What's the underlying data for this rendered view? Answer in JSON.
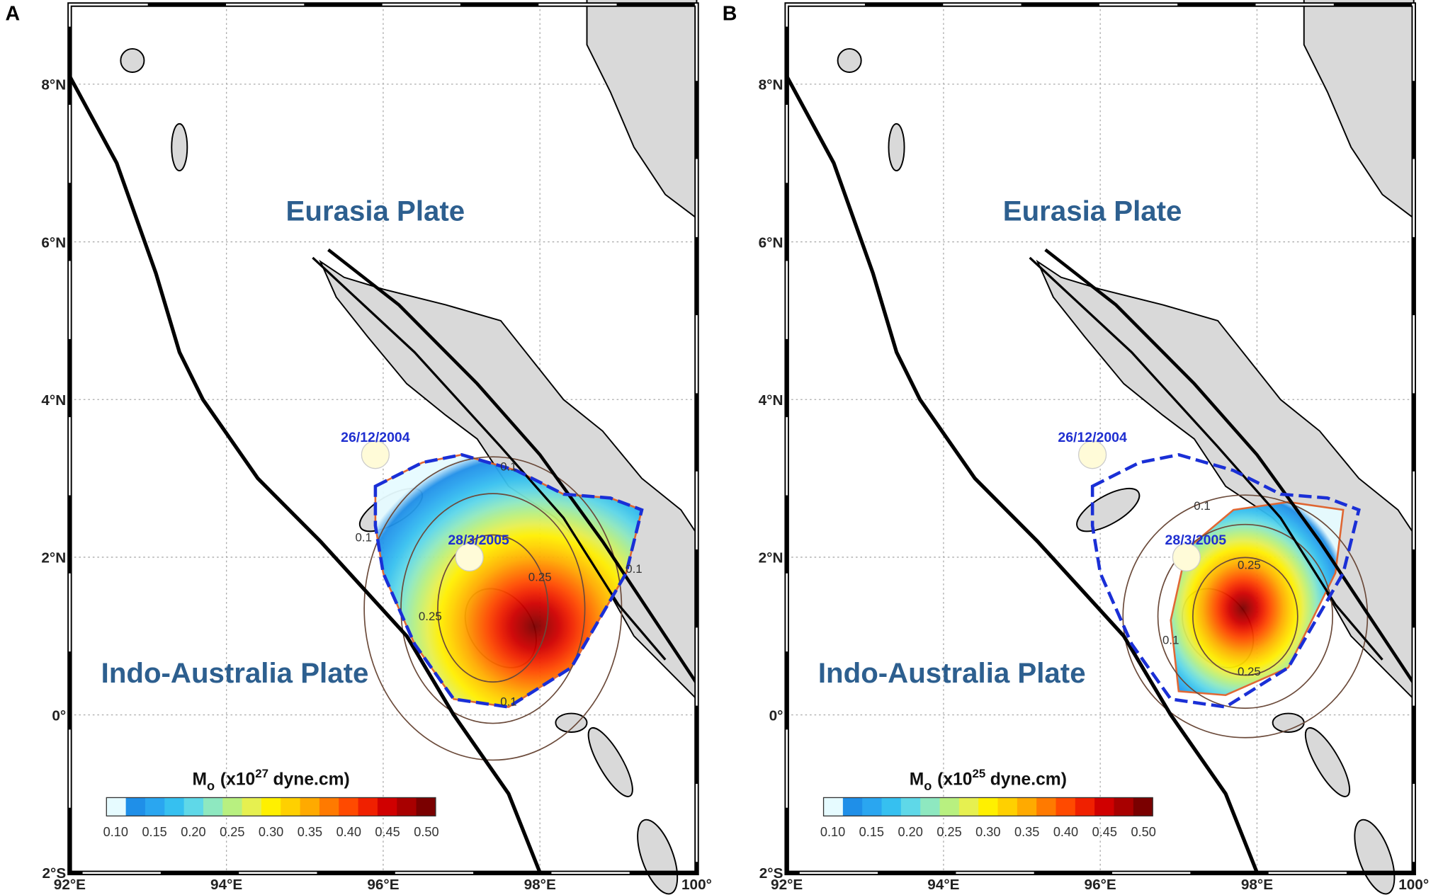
{
  "panels": [
    {
      "label": "A",
      "plates": [
        "Eurasia Plate",
        "Indo-Australia Plate"
      ],
      "dates": [
        "26/12/2004",
        "28/3/2005"
      ],
      "contour_labels": [
        "0.1",
        "0.25",
        "0.25",
        "0.1",
        "0.1",
        "0.1"
      ],
      "colorbar_title": {
        "symbol": "M",
        "subscript": "o",
        "prefix": "(x10",
        "exponent": "27",
        "suffix": "dyne.cm)"
      },
      "colorbar_ticks": [
        "0.10",
        "0.15",
        "0.20",
        "0.25",
        "0.30",
        "0.35",
        "0.40",
        "0.45",
        "0.50"
      ],
      "lat_labels": [
        "8°N",
        "6°N",
        "4°N",
        "2°N",
        "0°",
        "2°S"
      ],
      "lon_labels": [
        "92°E",
        "94°E",
        "96°E",
        "98°E",
        "100°"
      ]
    },
    {
      "label": "B",
      "plates": [
        "Eurasia Plate",
        "Indo-Australia Plate"
      ],
      "dates": [
        "26/12/2004",
        "28/3/2005"
      ],
      "contour_labels": [
        "0.1",
        "0.25",
        "0.25",
        "0.1"
      ],
      "colorbar_title": {
        "symbol": "M",
        "subscript": "o",
        "prefix": "(x10",
        "exponent": "25",
        "suffix": "dyne.cm)"
      },
      "colorbar_ticks": [
        "0.10",
        "0.15",
        "0.20",
        "0.25",
        "0.30",
        "0.35",
        "0.40",
        "0.45",
        "0.50"
      ],
      "lat_labels": [
        "8°N",
        "6°N",
        "4°N",
        "2°N",
        "0°",
        "2°S"
      ],
      "lon_labels": [
        "92°E",
        "94°E",
        "96°E",
        "98°E",
        "100°"
      ]
    }
  ]
}
